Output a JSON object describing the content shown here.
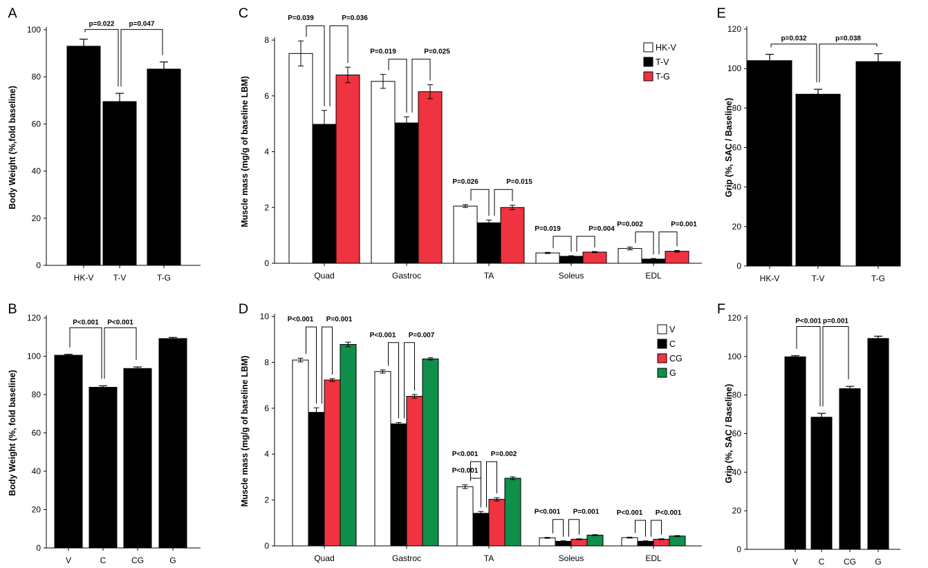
{
  "colors": {
    "hk_v": "#ffffff",
    "t_v": "#000000",
    "t_g": "#ef3340",
    "v": "#ffffff",
    "c": "#000000",
    "cg": "#ef3340",
    "g": "#0f8f4a"
  },
  "chart_data": [
    {
      "id": "A",
      "panel_label": "A",
      "type": "bar",
      "ylabel": "Body Weight (%,fold baseline)",
      "ylim": [
        0,
        100
      ],
      "yticks": [
        0,
        20,
        40,
        60,
        80,
        100
      ],
      "categories": [
        "HK-V",
        "T-V",
        "T-G"
      ],
      "series": [
        {
          "values": [
            93,
            69.5,
            83.3
          ],
          "errors": [
            3,
            3.5,
            3
          ],
          "color": "#000000"
        }
      ],
      "annotations": [
        {
          "text": "p=0.022",
          "from": 0,
          "to": 1
        },
        {
          "text": "p=0.047",
          "from": 1,
          "to": 2
        }
      ]
    },
    {
      "id": "B",
      "panel_label": "B",
      "type": "bar",
      "ylabel": "Body Weight (%, fold baseline)",
      "ylim": [
        0,
        120
      ],
      "yticks": [
        0,
        20,
        40,
        60,
        80,
        100,
        120
      ],
      "categories": [
        "V",
        "C",
        "CG",
        "G"
      ],
      "series": [
        {
          "values": [
            100.5,
            83.8,
            93.6,
            109.2
          ],
          "errors": [
            0.5,
            0.8,
            0.8,
            0.6
          ],
          "color": "#000000"
        }
      ],
      "annotations": [
        {
          "text": "P<0.001",
          "from": 0,
          "to": 1
        },
        {
          "text": "P<0.001",
          "from": 1,
          "to": 2
        }
      ]
    },
    {
      "id": "C",
      "panel_label": "C",
      "type": "bar",
      "ylabel": "Muscle mass (mg/g of baseline LBM)",
      "ylim": [
        0,
        8
      ],
      "yticks": [
        0,
        2,
        4,
        6,
        8
      ],
      "categories": [
        "Quad",
        "Gastroc",
        "TA",
        "Soleus",
        "EDL"
      ],
      "series": [
        {
          "name": "HK-V",
          "color": "#ffffff",
          "values": [
            7.52,
            6.52,
            2.05,
            0.37,
            0.53
          ],
          "errors": [
            0.45,
            0.25,
            0.05,
            0.02,
            0.05
          ]
        },
        {
          "name": "T-V",
          "color": "#000000",
          "values": [
            4.98,
            5.03,
            1.45,
            0.25,
            0.15
          ],
          "errors": [
            0.5,
            0.22,
            0.1,
            0.02,
            0.02
          ]
        },
        {
          "name": "T-G",
          "color": "#ef3340",
          "values": [
            6.75,
            6.15,
            2.0,
            0.4,
            0.43
          ],
          "errors": [
            0.28,
            0.25,
            0.08,
            0.02,
            0.03
          ]
        }
      ],
      "annotations": [
        {
          "text": "P=0.039",
          "cat": 0,
          "from": 0,
          "to": 1
        },
        {
          "text": "P=0.036",
          "cat": 0,
          "from": 1,
          "to": 2
        },
        {
          "text": "P=0.019",
          "cat": 1,
          "from": 0,
          "to": 1
        },
        {
          "text": "P=0.025",
          "cat": 1,
          "from": 1,
          "to": 2
        },
        {
          "text": "P=0.026",
          "cat": 2,
          "from": 0,
          "to": 1
        },
        {
          "text": "P=0.015",
          "cat": 2,
          "from": 1,
          "to": 2
        },
        {
          "text": "P=0.019",
          "cat": 3,
          "from": 0,
          "to": 1
        },
        {
          "text": "P=0.004",
          "cat": 3,
          "from": 1,
          "to": 2
        },
        {
          "text": "P=0.002",
          "cat": 4,
          "from": 0,
          "to": 1
        },
        {
          "text": "P=0.001",
          "cat": 4,
          "from": 1,
          "to": 2
        }
      ],
      "legend": "top-right"
    },
    {
      "id": "D",
      "panel_label": "D",
      "type": "bar",
      "ylabel": "Muscle mass (mg/g of baseline LBM)",
      "ylim": [
        0,
        10
      ],
      "yticks": [
        0,
        2,
        4,
        6,
        8,
        10
      ],
      "categories": [
        "Quad",
        "Gastroc",
        "TA",
        "Soleus",
        "EDL"
      ],
      "series": [
        {
          "name": "V",
          "color": "#ffffff",
          "values": [
            8.1,
            7.6,
            2.58,
            0.35,
            0.36
          ],
          "errors": [
            0.08,
            0.07,
            0.08,
            0.02,
            0.02
          ]
        },
        {
          "name": "C",
          "color": "#000000",
          "values": [
            5.82,
            5.32,
            1.42,
            0.2,
            0.2
          ],
          "errors": [
            0.2,
            0.06,
            0.08,
            0.02,
            0.02
          ]
        },
        {
          "name": "CG",
          "color": "#ef3340",
          "values": [
            7.23,
            6.52,
            2.03,
            0.29,
            0.29
          ],
          "errors": [
            0.06,
            0.08,
            0.07,
            0.02,
            0.02
          ]
        },
        {
          "name": "G",
          "color": "#0f8f4a",
          "values": [
            8.78,
            8.15,
            2.95,
            0.47,
            0.43
          ],
          "errors": [
            0.1,
            0.05,
            0.06,
            0.02,
            0.02
          ]
        }
      ],
      "annotations": [
        {
          "text": "P<0.001",
          "cat": 0,
          "from": 0,
          "to": 1
        },
        {
          "text": "P=0.001",
          "cat": 0,
          "from": 1,
          "to": 2
        },
        {
          "text": "P<0.001",
          "cat": 1,
          "from": 0,
          "to": 1
        },
        {
          "text": "P=0.007",
          "cat": 1,
          "from": 1,
          "to": 2
        },
        {
          "text": "P<0.001",
          "cat": 2,
          "from": 0,
          "to": 1
        },
        {
          "text": "P<0.001",
          "cat": 2,
          "from": 0,
          "to": 1,
          "inner": true
        },
        {
          "text": "P=0.002",
          "cat": 2,
          "from": 1,
          "to": 2
        },
        {
          "text": "P<0.001",
          "cat": 3,
          "from": 0,
          "to": 1
        },
        {
          "text": "P=0.001",
          "cat": 3,
          "from": 1,
          "to": 2
        },
        {
          "text": "P<0.001",
          "cat": 4,
          "from": 0,
          "to": 1
        },
        {
          "text": "P<0.001",
          "cat": 4,
          "from": 1,
          "to": 2
        }
      ],
      "legend": "top-right"
    },
    {
      "id": "E",
      "panel_label": "E",
      "type": "bar",
      "ylabel": "Grip (%, SAC / Baseline)",
      "ylim": [
        0,
        120
      ],
      "yticks": [
        0,
        20,
        40,
        60,
        80,
        100,
        120
      ],
      "categories": [
        "HK-V",
        "T-V",
        "T-G"
      ],
      "series": [
        {
          "values": [
            104,
            87,
            103.5
          ],
          "errors": [
            3.2,
            2.5,
            4
          ],
          "color": "#000000"
        }
      ],
      "annotations": [
        {
          "text": "p=0.032",
          "from": 0,
          "to": 1
        },
        {
          "text": "p=0.038",
          "from": 1,
          "to": 2
        }
      ]
    },
    {
      "id": "F",
      "panel_label": "F",
      "type": "bar",
      "ylabel": "Grip (%, SAC / Baseline)",
      "ylim": [
        0,
        120
      ],
      "yticks": [
        0,
        20,
        40,
        60,
        80,
        100,
        120
      ],
      "categories": [
        "V",
        "C",
        "CG",
        "G"
      ],
      "series": [
        {
          "values": [
            99.8,
            68.5,
            83.3,
            109.3
          ],
          "errors": [
            0.6,
            2,
            1.2,
            1.2
          ],
          "color": "#000000"
        }
      ],
      "annotations": [
        {
          "text": "P<0.001",
          "from": 0,
          "to": 1
        },
        {
          "text": "p=0.001",
          "from": 1,
          "to": 2
        }
      ]
    }
  ]
}
